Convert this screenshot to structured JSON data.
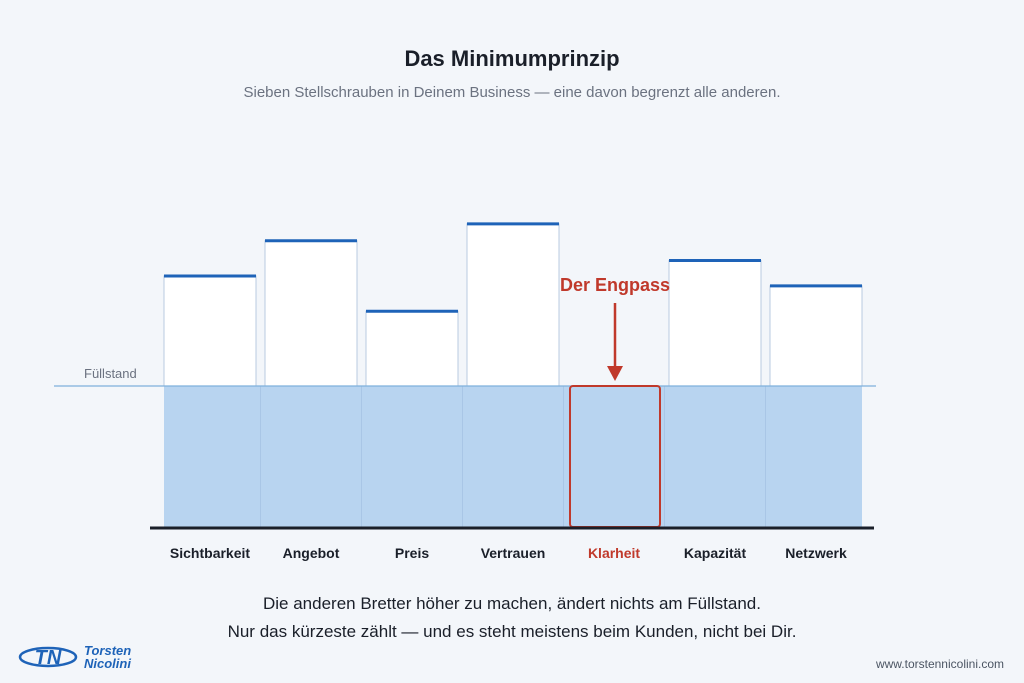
{
  "title": "Das Minimumprinzip",
  "subtitle": "Sieben Stellschrauben in Deinem Business — eine davon begrenzt alle anderen.",
  "level_label": "Füllstand",
  "bottleneck_label": "Der Engpass",
  "bottleneck_index": 4,
  "colors": {
    "accent": "#1e63b8",
    "highlight": "#c0392b",
    "water": "#b8d4f0",
    "stave_border": "#b9cbe0"
  },
  "staves": [
    {
      "label": "Sichtbarkeit",
      "height": 0.78
    },
    {
      "label": "Angebot",
      "height": 1.03
    },
    {
      "label": "Preis",
      "height": 0.53
    },
    {
      "label": "Vertrauen",
      "height": 1.15
    },
    {
      "label": "Klarheit",
      "height": 0.0
    },
    {
      "label": "Kapazität",
      "height": 0.89
    },
    {
      "label": "Netzwerk",
      "height": 0.71
    }
  ],
  "caption_line1": "Die anderen Bretter höher zu machen, ändert nichts am Füllstand.",
  "caption_line2": "Nur das kürzeste zählt — und es steht meistens beim Kunden, nicht bei Dir.",
  "logo": {
    "line1": "Torsten",
    "line2": "Nicolini",
    "icon": "tn-monogram-icon"
  },
  "website": "www.torstennicolini.com"
}
